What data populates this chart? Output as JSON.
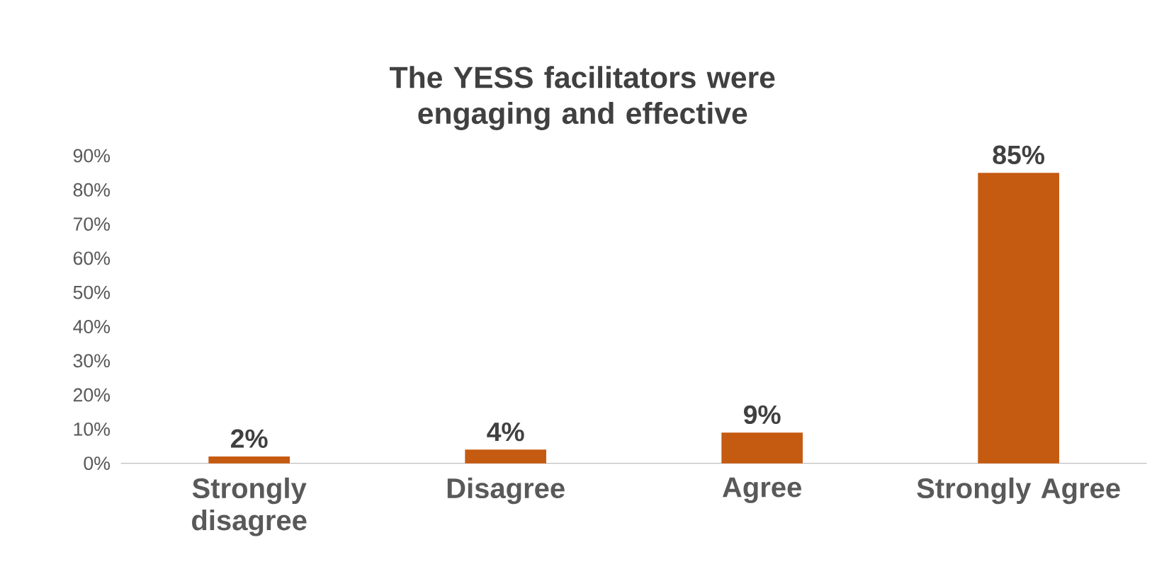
{
  "chart_data": {
    "type": "bar",
    "title": "The YESS facilitators were engaging and effective",
    "categories": [
      "Strongly disagree",
      "Disagree",
      "Agree",
      "Strongly Agree"
    ],
    "values": [
      2,
      4,
      9,
      85
    ],
    "color": "#c55a11",
    "value_labels": [
      "2%",
      "4%",
      "9%",
      "85%"
    ],
    "ylim": [
      0,
      90
    ],
    "yticks": [
      {
        "value": 0,
        "label": "0%"
      },
      {
        "value": 10,
        "label": "10%"
      },
      {
        "value": 20,
        "label": "20%"
      },
      {
        "value": 30,
        "label": "30%"
      },
      {
        "value": 40,
        "label": "40%"
      },
      {
        "value": 50,
        "label": "50%"
      },
      {
        "value": 60,
        "label": "60%"
      },
      {
        "value": 70,
        "label": "70%"
      },
      {
        "value": 80,
        "label": "80%"
      },
      {
        "value": 90,
        "label": "90%"
      }
    ],
    "data_labels": false
  }
}
